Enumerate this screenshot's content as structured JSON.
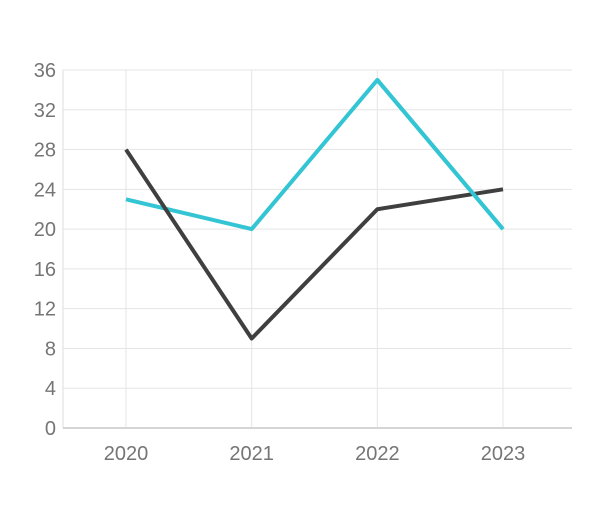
{
  "chart_data": {
    "type": "line",
    "title": "",
    "xlabel": "",
    "ylabel": "",
    "categories": [
      "2020",
      "2021",
      "2022",
      "2023"
    ],
    "series": [
      {
        "name": "cyan-series",
        "color": "#33c5d3",
        "values": [
          23,
          20,
          35,
          20
        ]
      },
      {
        "name": "dark-series",
        "color": "#3f3f3f",
        "values": [
          28,
          9,
          22,
          24
        ]
      }
    ],
    "ylim": [
      0,
      36
    ],
    "yticks": [
      0,
      4,
      8,
      12,
      16,
      20,
      24,
      28,
      32,
      36
    ],
    "grid": true,
    "legend": "none",
    "colors": {
      "grid": "#e5e5e5",
      "axis_line": "#d5d5d5",
      "y_axis_line": "#dcdcdc",
      "tick_text": "#757575",
      "background": "#ffffff"
    }
  }
}
